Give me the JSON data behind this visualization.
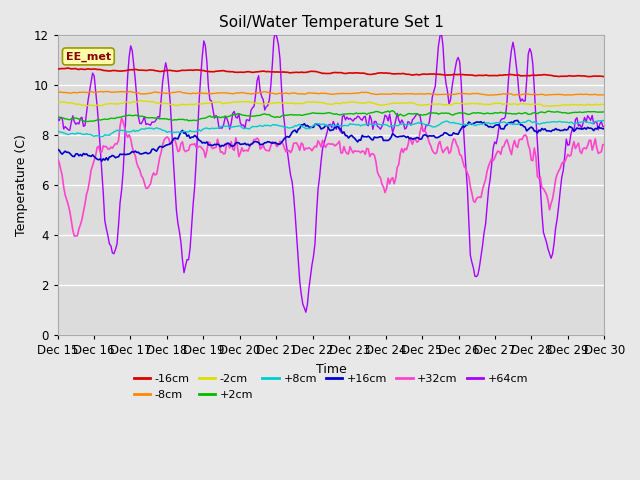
{
  "title": "Soil/Water Temperature Set 1",
  "xlabel": "Time",
  "ylabel": "Temperature (C)",
  "ylim": [
    0,
    12
  ],
  "yticks": [
    0,
    2,
    4,
    6,
    8,
    10,
    12
  ],
  "xlim": [
    0,
    15
  ],
  "xtick_labels": [
    "Dec 15",
    "Dec 16",
    "Dec 17",
    "Dec 18",
    "Dec 19",
    "Dec 20",
    "Dec 21",
    "Dec 22",
    "Dec 23",
    "Dec 24",
    "Dec 25",
    "Dec 26",
    "Dec 27",
    "Dec 28",
    "Dec 29",
    "Dec 30"
  ],
  "series_colors": {
    "-16cm": "#dd0000",
    "-8cm": "#ff8800",
    "-2cm": "#dddd00",
    "+2cm": "#00bb00",
    "+8cm": "#00cccc",
    "+16cm": "#0000cc",
    "+32cm": "#ff44cc",
    "+64cm": "#aa00ff"
  },
  "legend_label": "EE_met",
  "fig_bg": "#e8e8e8",
  "plot_bg": "#dcdcdc"
}
